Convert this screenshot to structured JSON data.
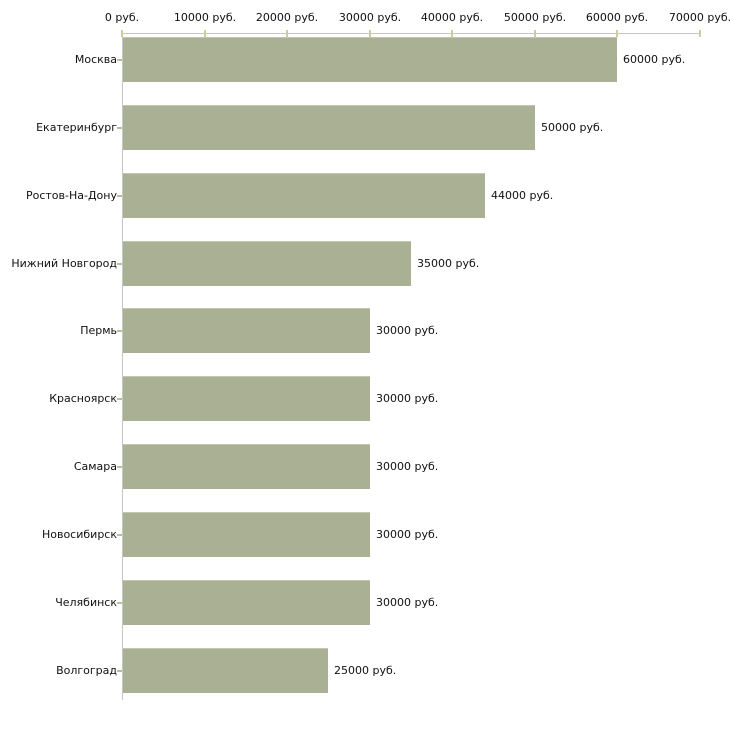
{
  "chart_data": {
    "type": "bar",
    "orientation": "horizontal",
    "unit": "руб.",
    "categories": [
      "Москва",
      "Екатеринбург",
      "Ростов-На-Дону",
      "Нижний Новгород",
      "Пермь",
      "Красноярск",
      "Самара",
      "Новосибирск",
      "Челябинск",
      "Волгоград"
    ],
    "values": [
      60000,
      50000,
      44000,
      35000,
      30000,
      30000,
      30000,
      30000,
      30000,
      25000
    ],
    "value_labels": [
      "60000 руб.",
      "50000 руб.",
      "44000 руб.",
      "35000 руб.",
      "30000 руб.",
      "30000 руб.",
      "30000 руб.",
      "30000 руб.",
      "30000 руб.",
      "25000 руб."
    ],
    "x_axis": {
      "position": "top",
      "min": 0,
      "max": 70000,
      "tick_values": [
        0,
        10000,
        20000,
        30000,
        40000,
        50000,
        60000,
        70000
      ],
      "tick_labels": [
        "0 руб.",
        "10000 руб.",
        "20000 руб.",
        "30000 руб.",
        "40000 руб.",
        "50000 руб.",
        "60000 руб.",
        "70000 руб."
      ]
    },
    "grid": false,
    "legend": false,
    "colors": {
      "bar_fill": "#aab094",
      "bar_highlight": "#c3c7ae",
      "axis_line": "#c6c6c6",
      "x_tick_mark": "#cccc9f",
      "y_tick_mark": "#bdbd9c",
      "text": "#111111",
      "background": "#ffffff"
    }
  }
}
